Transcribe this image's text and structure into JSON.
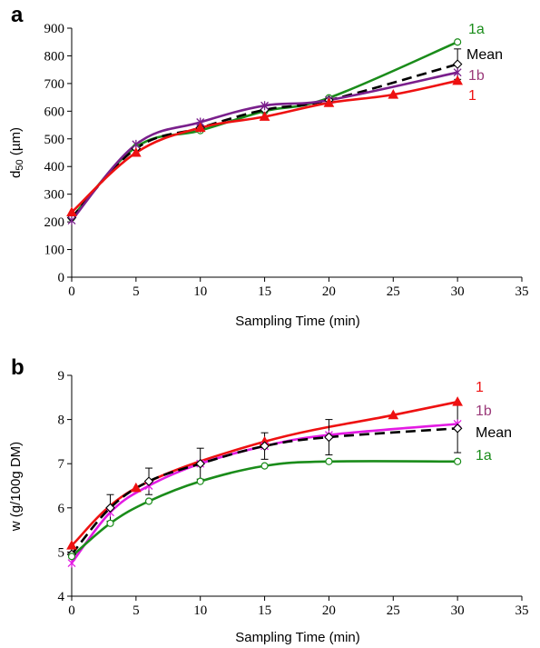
{
  "chart_data": [
    {
      "panel": "a",
      "type": "line",
      "xlabel": "Sampling Time (min)",
      "ylabel": "d50 (µm)",
      "ylabel_main": "d",
      "ylabel_sub": "50",
      "ylabel_rest": " (µm)",
      "xlim": [
        0,
        35
      ],
      "ylim": [
        0,
        900
      ],
      "xticks": [
        0,
        5,
        10,
        15,
        20,
        25,
        30,
        35
      ],
      "yticks": [
        0,
        100,
        200,
        300,
        400,
        500,
        600,
        700,
        800,
        900
      ],
      "series": [
        {
          "name": "1a",
          "color": "#1a8c1a",
          "marker": "circle",
          "dashed": false,
          "x": [
            0,
            5,
            10,
            15,
            20,
            30
          ],
          "y": [
            215,
            470,
            530,
            600,
            648,
            850
          ]
        },
        {
          "name": "Mean",
          "color": "#000000",
          "marker": "diamond",
          "dashed": true,
          "x": [
            0,
            5,
            10,
            15,
            20,
            30
          ],
          "y": [
            215,
            465,
            540,
            605,
            640,
            770
          ],
          "errors": [
            0,
            0,
            0,
            0,
            0,
            55
          ]
        },
        {
          "name": "1b",
          "color": "#7a1f8c",
          "marker": "cross",
          "dashed": false,
          "x": [
            0,
            5,
            10,
            15,
            20,
            30
          ],
          "y": [
            205,
            480,
            560,
            620,
            640,
            740
          ]
        },
        {
          "name": "1",
          "color": "#ee1111",
          "marker": "triangle",
          "dashed": false,
          "x": [
            0,
            5,
            10,
            15,
            20,
            25,
            30
          ],
          "y": [
            235,
            450,
            540,
            580,
            630,
            660,
            710
          ]
        }
      ],
      "legend": [
        {
          "label": "1a",
          "color": "#1a8c1a"
        },
        {
          "label": "Mean",
          "color": "#000000"
        },
        {
          "label": "1b",
          "color": "#9b3a7a"
        },
        {
          "label": "1",
          "color": "#ee1111"
        }
      ]
    },
    {
      "panel": "b",
      "type": "line",
      "xlabel": "Sampling Time (min)",
      "ylabel": "w (g/100g DM)",
      "xlim": [
        0,
        35
      ],
      "ylim": [
        4,
        9
      ],
      "xticks": [
        0,
        5,
        10,
        15,
        20,
        25,
        30,
        35
      ],
      "yticks": [
        4,
        5,
        6,
        7,
        8,
        9
      ],
      "series": [
        {
          "name": "1",
          "color": "#ee1111",
          "marker": "triangle",
          "dashed": false,
          "x": [
            0,
            5,
            15,
            25,
            30
          ],
          "y": [
            5.15,
            6.45,
            7.5,
            8.1,
            8.4
          ]
        },
        {
          "name": "1b",
          "color": "#e31ae3",
          "marker": "cross",
          "dashed": false,
          "x": [
            0,
            3,
            6,
            10,
            15,
            20,
            30
          ],
          "y": [
            4.75,
            5.9,
            6.5,
            7.0,
            7.4,
            7.65,
            7.9
          ]
        },
        {
          "name": "Mean",
          "color": "#000000",
          "marker": "diamond",
          "dashed": true,
          "x": [
            0,
            3,
            6,
            10,
            15,
            20,
            30
          ],
          "y": [
            4.95,
            6.0,
            6.6,
            7.0,
            7.4,
            7.6,
            7.8
          ],
          "errors": [
            0,
            0.3,
            0.3,
            0.35,
            0.3,
            0.4,
            0.55
          ]
        },
        {
          "name": "1a",
          "color": "#1a8c1a",
          "marker": "circle",
          "dashed": false,
          "x": [
            0,
            3,
            6,
            10,
            15,
            20,
            30
          ],
          "y": [
            4.9,
            5.65,
            6.15,
            6.6,
            6.95,
            7.05,
            7.05
          ]
        }
      ],
      "legend": [
        {
          "label": "1",
          "color": "#ee1111"
        },
        {
          "label": "1b",
          "color": "#9b3a7a"
        },
        {
          "label": "Mean",
          "color": "#000000"
        },
        {
          "label": "1a",
          "color": "#1a8c1a"
        }
      ]
    }
  ]
}
